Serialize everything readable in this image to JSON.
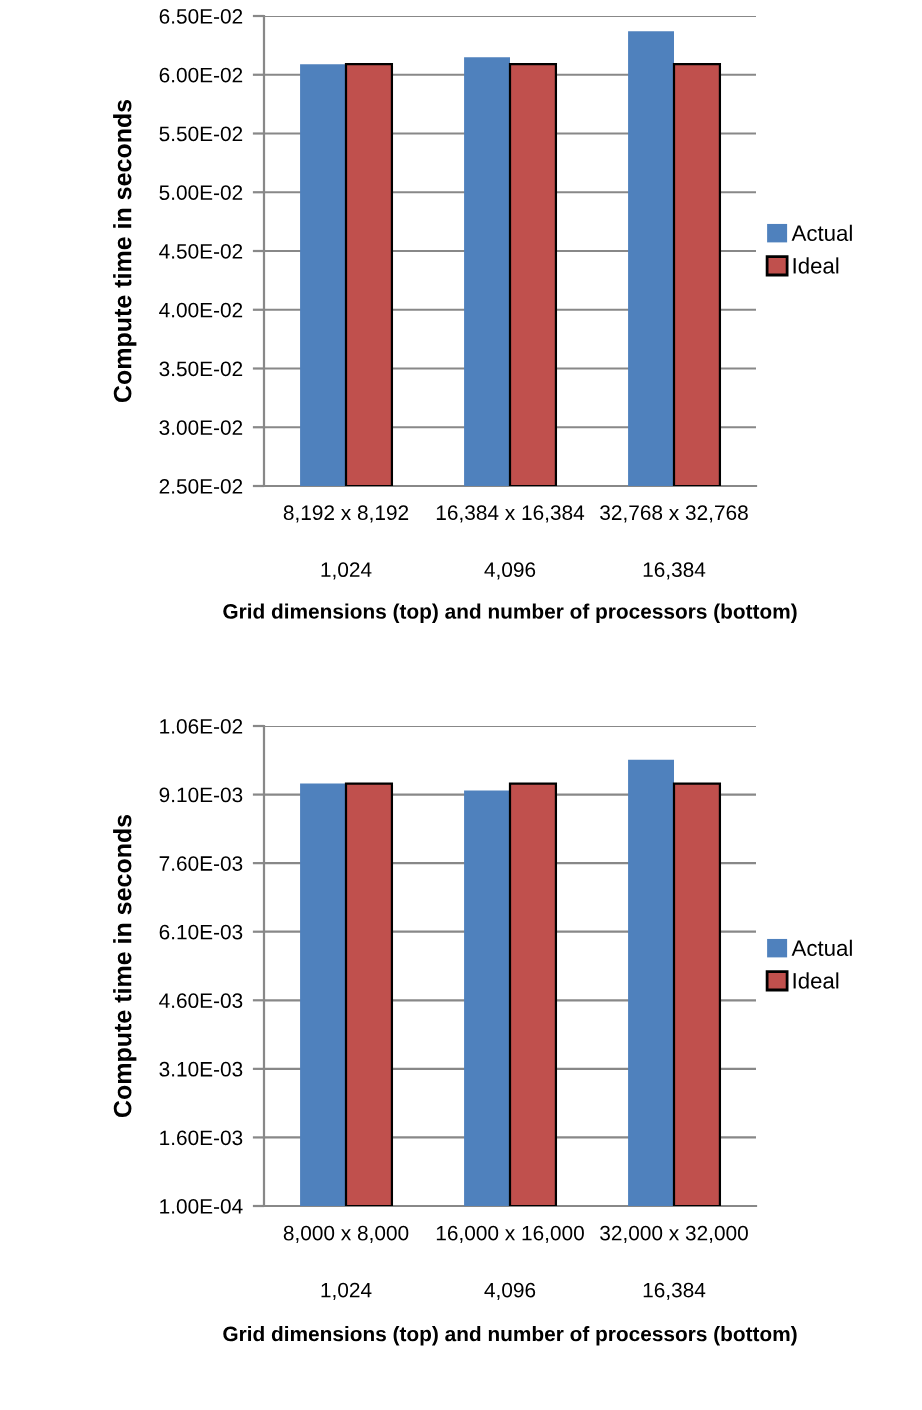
{
  "chart_data": [
    {
      "type": "bar",
      "ylabel": "Compute time in seconds",
      "xlabel": "Grid dimensions (top) and number of processors (bottom)",
      "categories": [
        "8,192 x 8,192\n\n1,024",
        "16,384 x 16,384\n\n4,096",
        "32,768 x 32,768\n\n16,384"
      ],
      "series": [
        {
          "name": "Actual",
          "color": "#4f81bd",
          "values": [
            0.0609,
            0.0615,
            0.0637
          ]
        },
        {
          "name": "Ideal",
          "color": "#c0504d",
          "values": [
            0.0609,
            0.0609,
            0.0609
          ]
        }
      ],
      "ylim": [
        0.025,
        0.065
      ],
      "yticks": [
        {
          "value": 0.025,
          "label": "2.50E-02"
        },
        {
          "value": 0.03,
          "label": "3.00E-02"
        },
        {
          "value": 0.035,
          "label": "3.50E-02"
        },
        {
          "value": 0.04,
          "label": "4.00E-02"
        },
        {
          "value": 0.045,
          "label": "4.50E-02"
        },
        {
          "value": 0.05,
          "label": "5.00E-02"
        },
        {
          "value": 0.055,
          "label": "5.50E-02"
        },
        {
          "value": 0.06,
          "label": "6.00E-02"
        },
        {
          "value": 0.065,
          "label": "6.50E-02"
        }
      ],
      "grid": "y",
      "legend": "right"
    },
    {
      "type": "bar",
      "ylabel": "Compute time in seconds",
      "xlabel": "Grid dimensions (top) and number of processors (bottom)",
      "categories": [
        "8,000 x 8,000\n\n1,024",
        "16,000 x 16,000\n\n4,096",
        "32,000 x 32,000\n\n16,384"
      ],
      "series": [
        {
          "name": "Actual",
          "color": "#4f81bd",
          "values": [
            0.00934,
            0.00919,
            0.00986
          ]
        },
        {
          "name": "Ideal",
          "color": "#c0504d",
          "values": [
            0.00934,
            0.00934,
            0.00934
          ]
        }
      ],
      "ylim": [
        0.0001,
        0.0106
      ],
      "yticks": [
        {
          "value": 0.0001,
          "label": "1.00E-04"
        },
        {
          "value": 0.0016,
          "label": "1.60E-03"
        },
        {
          "value": 0.0031,
          "label": "3.10E-03"
        },
        {
          "value": 0.0046,
          "label": "4.60E-03"
        },
        {
          "value": 0.0061,
          "label": "6.10E-03"
        },
        {
          "value": 0.0076,
          "label": "7.60E-03"
        },
        {
          "value": 0.0091,
          "label": "9.10E-03"
        },
        {
          "value": 0.0106,
          "label": "1.06E-02"
        }
      ],
      "grid": "y",
      "legend": "right"
    }
  ]
}
